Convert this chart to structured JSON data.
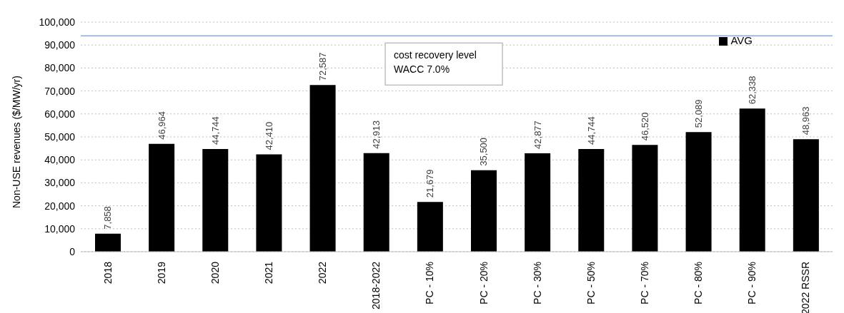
{
  "chart_data": {
    "type": "bar",
    "categories": [
      "2018",
      "2019",
      "2020",
      "2021",
      "2022",
      "2018-2022",
      "PC - 10%",
      "PC - 20%",
      "PC - 30%",
      "PC - 50%",
      "PC - 70%",
      "PC - 80%",
      "PC - 90%",
      "2022 RSSR"
    ],
    "series": [
      {
        "name": "AVG",
        "color": "#000000",
        "values": [
          7858,
          46964,
          44744,
          42410,
          72587,
          42913,
          21679,
          35500,
          42877,
          44744,
          46520,
          52089,
          62338,
          48963
        ],
        "value_labels": [
          "7,858",
          "46,964",
          "44,744",
          "42,410",
          "72,587",
          "42,913",
          "21,679",
          "35,500",
          "42,877",
          "44,744",
          "46,520",
          "52,089",
          "62,338",
          "48,963"
        ]
      }
    ],
    "ylabel": "Non-USE revenues ($/MW/yr)",
    "ylim": [
      0,
      100000
    ],
    "yticks": [
      {
        "value": 0,
        "label": "0"
      },
      {
        "value": 10000,
        "label": "10,000"
      },
      {
        "value": 20000,
        "label": "20,000"
      },
      {
        "value": 30000,
        "label": "30,000"
      },
      {
        "value": 40000,
        "label": "40,000"
      },
      {
        "value": 50000,
        "label": "50,000"
      },
      {
        "value": 60000,
        "label": "60,000"
      },
      {
        "value": 70000,
        "label": "70,000"
      },
      {
        "value": 80000,
        "label": "80,000"
      },
      {
        "value": 90000,
        "label": "90,000"
      },
      {
        "value": 100000,
        "label": "100,000"
      }
    ],
    "grid": "y",
    "legend": "top right",
    "ref_lines": [
      {
        "axis": "y",
        "value": 94000,
        "label": "cost recovery level\nWACC 7.0%",
        "color": "#8faadc"
      }
    ]
  }
}
